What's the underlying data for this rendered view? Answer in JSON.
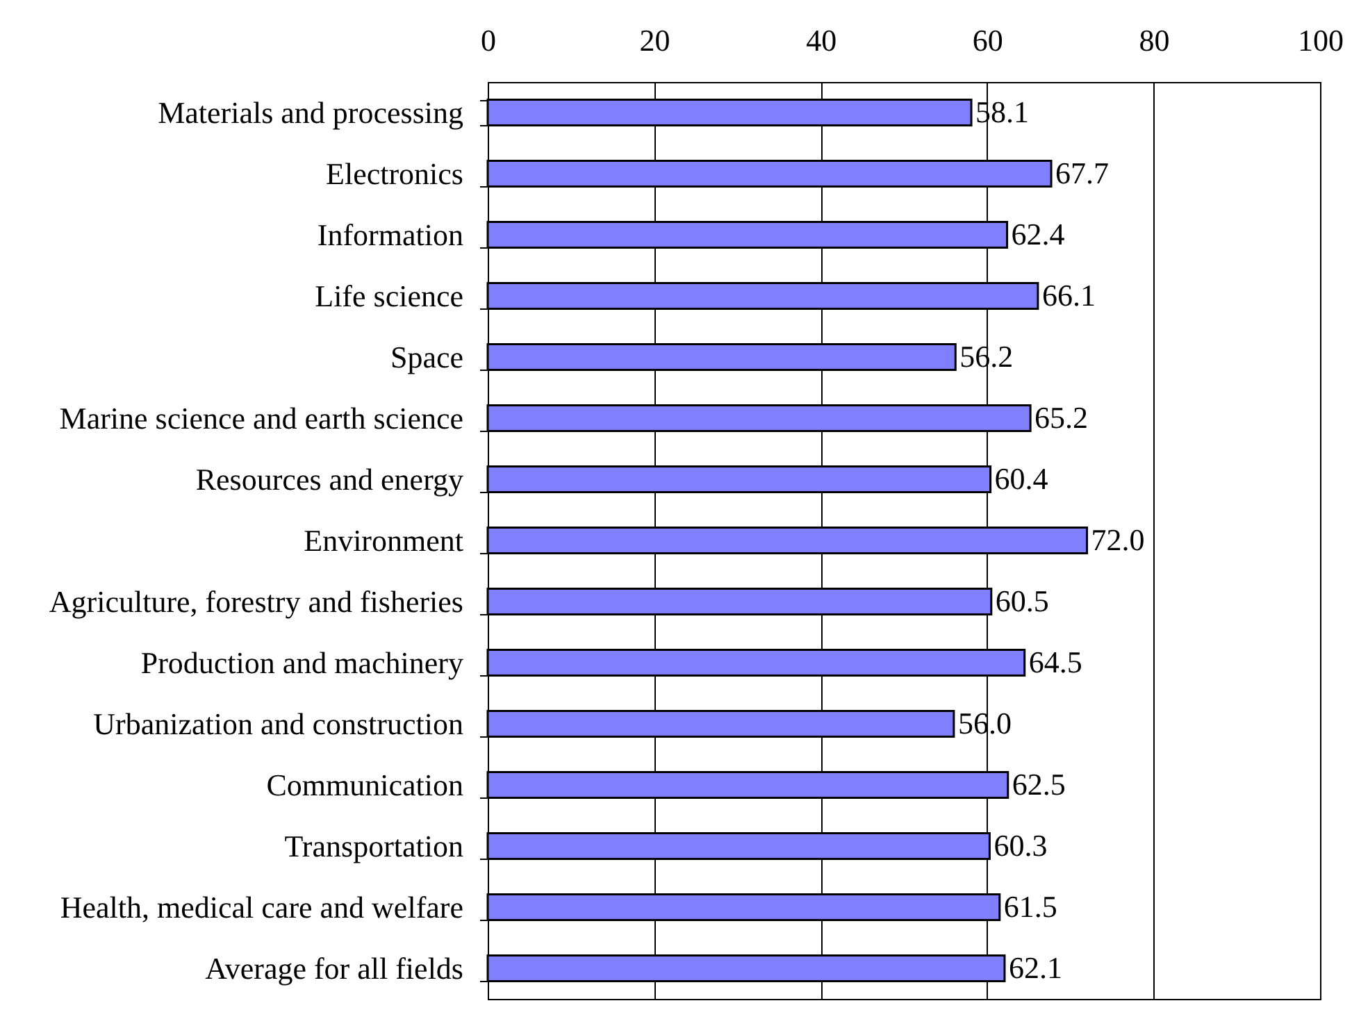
{
  "chart_data": {
    "type": "bar",
    "orientation": "horizontal",
    "categories": [
      "Materials and processing",
      "Electronics",
      "Information",
      "Life science",
      "Space",
      "Marine science and earth science",
      "Resources and energy",
      "Environment",
      "Agriculture, forestry and fisheries",
      "Production and machinery",
      "Urbanization and construction",
      "Communication",
      "Transportation",
      "Health, medical care and welfare",
      "Average for all fields"
    ],
    "values": [
      58.1,
      67.7,
      62.4,
      66.1,
      56.2,
      65.2,
      60.4,
      72.0,
      60.5,
      64.5,
      56.0,
      62.5,
      60.3,
      61.5,
      62.1
    ],
    "value_labels": [
      "58.1",
      "67.7",
      "62.4",
      "66.1",
      "56.2",
      "65.2",
      "60.4",
      "72.0",
      "60.5",
      "64.5",
      "56.0",
      "62.5",
      "60.3",
      "61.5",
      "62.1"
    ],
    "color": "#8080ff",
    "xlim": [
      0,
      100
    ],
    "xticks": [
      0,
      20,
      40,
      60,
      80,
      100
    ],
    "grid": "x"
  }
}
